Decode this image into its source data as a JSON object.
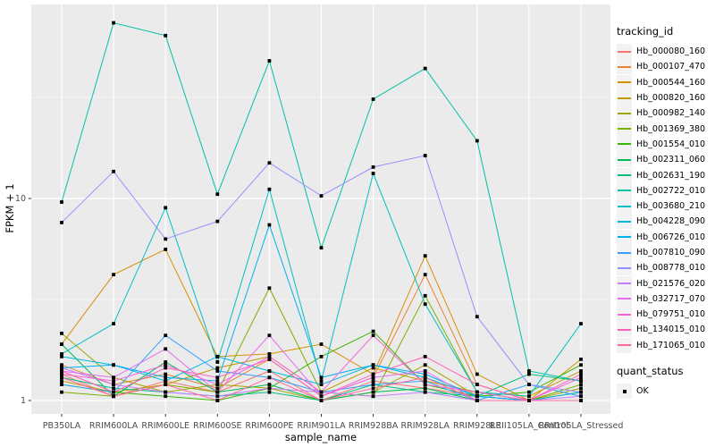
{
  "legend": {
    "tracking_title": "tracking_id",
    "quant_title": "quant_status",
    "quant_ok_label": "OK"
  },
  "chart_data": {
    "type": "line",
    "title": "",
    "xlabel": "sample_name",
    "ylabel": "FPKM + 1",
    "y_scale": "log10",
    "y_ticks": [
      1,
      10
    ],
    "y_minor_ticks": [
      3.162,
      31.62
    ],
    "ylim": [
      0.86,
      91
    ],
    "grid": true,
    "legend_position": "right",
    "panel_bg": "#EBEBEB",
    "gridline_color": "#FFFFFF",
    "point_color": "#000000",
    "axis_text_color": "#4D4D4D",
    "quant_status": "OK",
    "categories": [
      "PB350LA",
      "RRIM600LA",
      "RRIM600LE",
      "RRIM600SE",
      "RRIM600PE",
      "RRIM901LA",
      "RRIM928BA",
      "RRIM928LA",
      "RRIM928LE",
      "RRII105LA_Control",
      "RRII105LA_Stressed"
    ],
    "series": [
      {
        "name": "Hb_000080_160",
        "color": "#F8766D",
        "values": [
          1.35,
          1.05,
          1.25,
          1.1,
          1.4,
          1.0,
          1.25,
          1.15,
          1.05,
          1.0,
          1.0
        ]
      },
      {
        "name": "Hb_000107_470",
        "color": "#EA8331",
        "values": [
          1.5,
          1.2,
          1.35,
          1.15,
          1.6,
          1.05,
          1.3,
          4.2,
          1.2,
          1.0,
          1.1
        ]
      },
      {
        "name": "Hb_000544_160",
        "color": "#D89000",
        "values": [
          1.9,
          4.2,
          5.6,
          1.65,
          1.7,
          1.9,
          1.35,
          5.2,
          1.35,
          1.0,
          1.6
        ]
      },
      {
        "name": "Hb_000820_160",
        "color": "#C09B00",
        "values": [
          1.25,
          1.1,
          1.2,
          1.45,
          1.65,
          1.1,
          1.45,
          1.25,
          1.1,
          1.05,
          1.4
        ]
      },
      {
        "name": "Hb_000982_140",
        "color": "#A3A500",
        "values": [
          2.15,
          1.3,
          1.1,
          1.2,
          1.15,
          1.0,
          1.1,
          1.5,
          1.05,
          1.0,
          1.15
        ]
      },
      {
        "name": "Hb_001369_380",
        "color": "#7CAE00",
        "values": [
          1.1,
          1.05,
          1.2,
          1.1,
          3.6,
          1.1,
          1.05,
          3.3,
          1.1,
          1.0,
          1.2
        ]
      },
      {
        "name": "Hb_001554_010",
        "color": "#39B600",
        "values": [
          1.2,
          1.1,
          1.05,
          1.0,
          1.15,
          1.65,
          2.2,
          1.2,
          1.05,
          1.1,
          1.5
        ]
      },
      {
        "name": "Hb_002311_060",
        "color": "#00BB4E",
        "values": [
          1.9,
          1.05,
          1.55,
          1.1,
          1.2,
          1.0,
          1.1,
          1.15,
          1.0,
          1.0,
          1.1
        ]
      },
      {
        "name": "Hb_002631_190",
        "color": "#00BF7D",
        "values": [
          1.3,
          1.15,
          1.1,
          1.05,
          1.1,
          1.0,
          1.2,
          1.1,
          1.05,
          1.35,
          1.25
        ]
      },
      {
        "name": "Hb_002722_010",
        "color": "#00C1A3",
        "values": [
          9.6,
          74.0,
          64.0,
          10.5,
          48.0,
          5.7,
          31.0,
          44.0,
          19.3,
          1.4,
          1.25
        ]
      },
      {
        "name": "Hb_003680_210",
        "color": "#00BFC4",
        "values": [
          1.7,
          2.4,
          9.0,
          1.55,
          11.1,
          1.25,
          13.3,
          3.0,
          1.1,
          1.05,
          2.4
        ]
      },
      {
        "name": "Hb_004228_090",
        "color": "#00BAE0",
        "values": [
          1.65,
          1.5,
          1.25,
          1.65,
          1.4,
          1.2,
          1.5,
          1.3,
          1.05,
          1.0,
          1.1
        ]
      },
      {
        "name": "Hb_006726_010",
        "color": "#00B0F6",
        "values": [
          1.45,
          1.5,
          1.3,
          1.25,
          7.4,
          1.3,
          1.5,
          1.35,
          1.05,
          1.0,
          1.0
        ]
      },
      {
        "name": "Hb_007810_090",
        "color": "#35A2FF",
        "values": [
          1.2,
          1.1,
          2.1,
          1.4,
          1.3,
          1.1,
          1.2,
          1.25,
          1.0,
          1.2,
          1.05
        ]
      },
      {
        "name": "Hb_008778_010",
        "color": "#9590FF",
        "values": [
          7.6,
          13.6,
          6.3,
          7.7,
          15.0,
          10.3,
          14.3,
          16.3,
          2.6,
          1.2,
          1.1
        ]
      },
      {
        "name": "Hb_021576_020",
        "color": "#C77CFF",
        "values": [
          1.45,
          1.2,
          1.1,
          1.05,
          1.15,
          1.1,
          1.05,
          1.1,
          1.0,
          1.0,
          1.05
        ]
      },
      {
        "name": "Hb_032717_070",
        "color": "#E76BF3",
        "values": [
          1.4,
          1.3,
          1.8,
          1.1,
          2.1,
          1.05,
          1.3,
          1.4,
          1.0,
          1.0,
          1.0
        ]
      },
      {
        "name": "Hb_079751_010",
        "color": "#FA62DB",
        "values": [
          1.35,
          1.25,
          1.5,
          1.2,
          1.65,
          1.1,
          2.1,
          1.2,
          1.1,
          1.0,
          1.3
        ]
      },
      {
        "name": "Hb_134015_010",
        "color": "#FF62BC",
        "values": [
          1.4,
          1.1,
          1.45,
          1.3,
          1.6,
          1.05,
          1.35,
          1.65,
          1.2,
          1.0,
          1.35
        ]
      },
      {
        "name": "Hb_171065_010",
        "color": "#FF6A98",
        "values": [
          1.3,
          1.05,
          1.2,
          1.0,
          1.3,
          1.0,
          1.15,
          1.3,
          1.0,
          1.0,
          1.0
        ]
      }
    ]
  }
}
